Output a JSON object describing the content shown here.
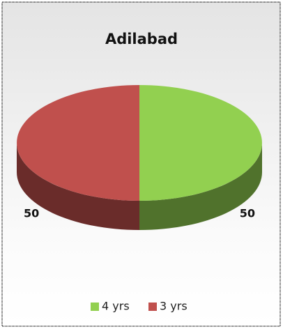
{
  "chart_data": {
    "type": "pie",
    "title": "Adilabad",
    "categories": [
      "4 yrs",
      "3 yrs"
    ],
    "values": [
      50,
      50
    ],
    "colors": [
      "#92d050",
      "#c0504d"
    ],
    "legend": "bottom"
  }
}
